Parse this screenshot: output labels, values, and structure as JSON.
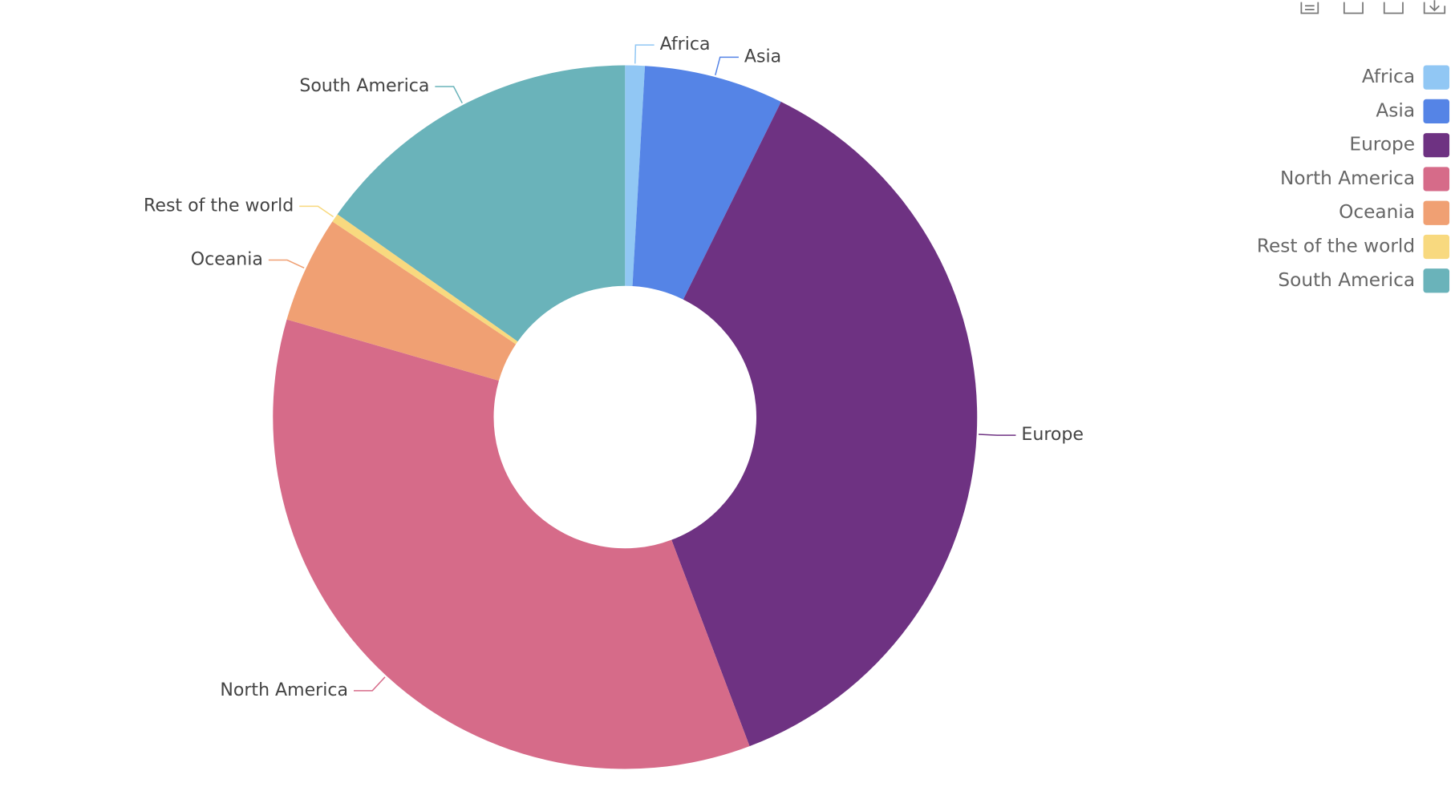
{
  "chart_data": {
    "type": "pie",
    "categories": [
      "Africa",
      "Asia",
      "Europe",
      "North America",
      "Oceania",
      "Rest of the world",
      "South America"
    ],
    "values": [
      0.9,
      6.4,
      36.9,
      35.2,
      4.9,
      0.4,
      15.2
    ],
    "colors": [
      "#91c7f4",
      "#5584e6",
      "#6e3282",
      "#d66b89",
      "#f0a073",
      "#f8d97f",
      "#6ab3ba"
    ],
    "legend": "top-right"
  }
}
